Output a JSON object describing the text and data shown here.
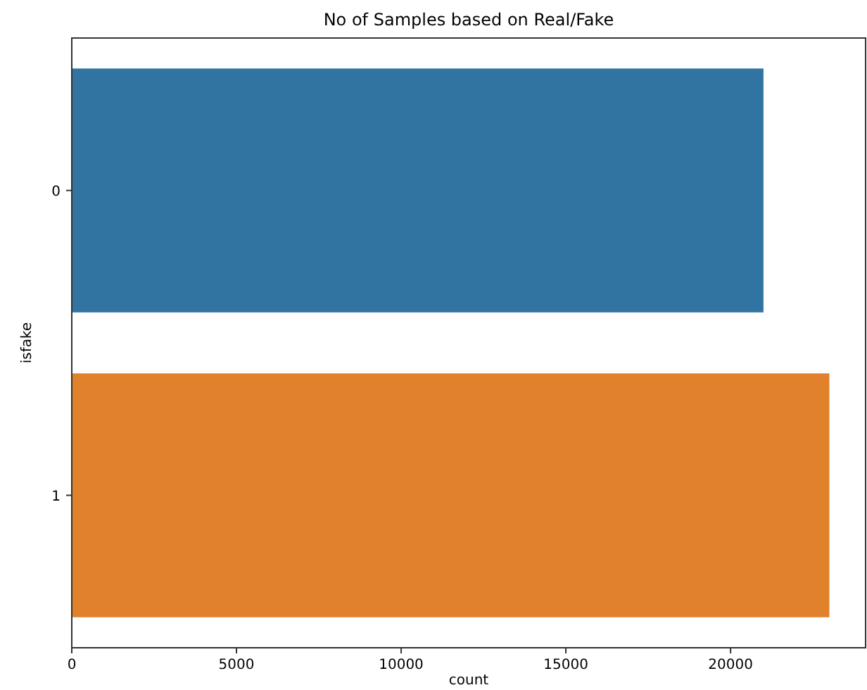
{
  "chart_data": {
    "type": "bar",
    "orientation": "horizontal",
    "title": "No of Samples based on Real/Fake",
    "xlabel": "count",
    "ylabel": "isfake",
    "categories": [
      "0",
      "1"
    ],
    "values": [
      21000,
      23000
    ],
    "colors": [
      "#3274a1",
      "#e1812c"
    ],
    "xlim": [
      0,
      24100
    ],
    "xticks": [
      0,
      5000,
      10000,
      15000,
      20000
    ],
    "grid": false
  }
}
